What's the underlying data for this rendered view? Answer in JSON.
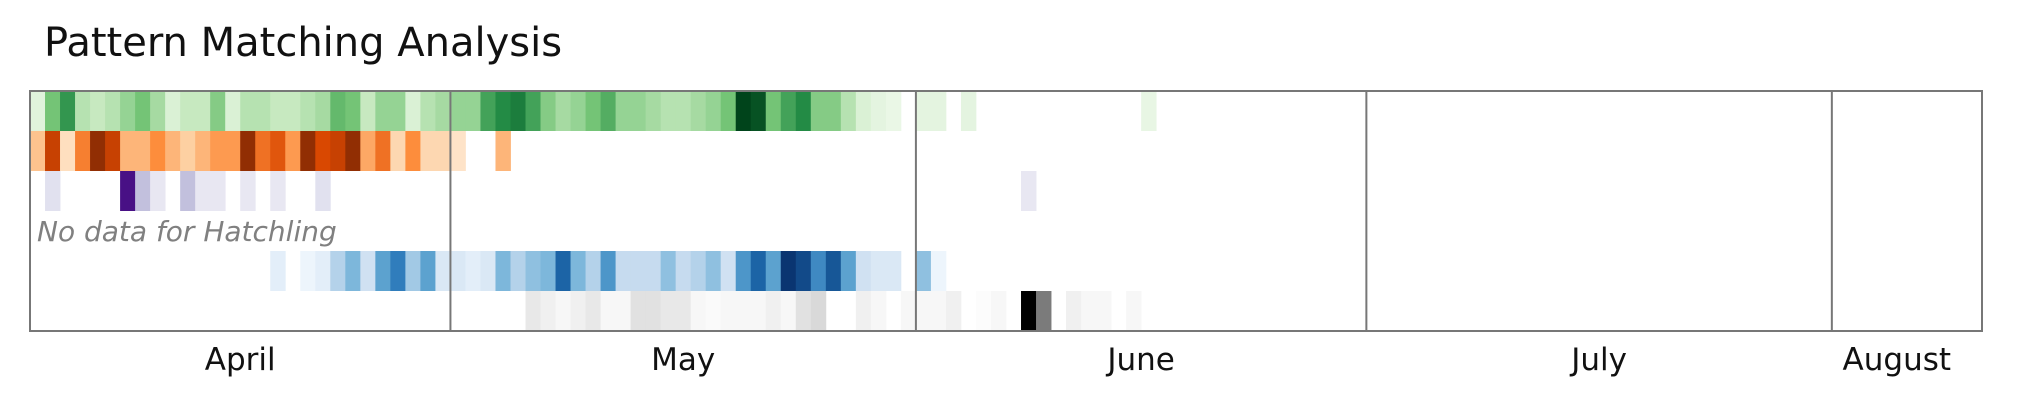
{
  "chart_data": {
    "type": "heatmap",
    "title": "Pattern Matching Analysis",
    "x_axis": {
      "type": "date",
      "range": [
        "2024-03-29",
        "2024-08-06"
      ],
      "month_labels": [
        "April",
        "May",
        "June",
        "July",
        "August"
      ],
      "month_boundaries": [
        "2024-04-26",
        "2024-05-27",
        "2024-06-26",
        "2024-07-27"
      ]
    },
    "color_scale": "intensity 0-1 per row",
    "rows": [
      {
        "colormap": "greens",
        "start": "2024-03-29",
        "values": [
          0.12,
          0.5,
          0.7,
          0.3,
          0.25,
          0.3,
          0.4,
          0.5,
          0.35,
          0.15,
          0.25,
          0.25,
          0.45,
          0.15,
          0.3,
          0.3,
          0.25,
          0.25,
          0.3,
          0.35,
          0.55,
          0.5,
          0.25,
          0.4,
          0.4,
          0.15,
          0.3,
          0.35,
          0.4,
          0.4,
          0.65,
          0.75,
          0.8,
          0.65,
          0.45,
          0.35,
          0.4,
          0.5,
          0.6,
          0.4,
          0.4,
          0.35,
          0.3,
          0.3,
          0.35,
          0.4,
          0.5,
          1.0,
          0.95,
          0.5,
          0.65,
          0.75,
          0.45,
          0.45,
          0.3,
          0.15,
          0.1,
          0.07,
          0.0,
          0.1,
          0.1,
          0.0,
          0.1,
          0.0,
          0.0,
          0.0,
          0.0,
          0.0,
          0.0,
          0.0,
          0.0,
          0.0,
          0.0,
          0.0,
          0.08
        ]
      },
      {
        "colormap": "oranges",
        "start": "2024-03-29",
        "values": [
          0.3,
          0.8,
          0.15,
          0.55,
          0.95,
          0.8,
          0.35,
          0.35,
          0.5,
          0.35,
          0.25,
          0.35,
          0.45,
          0.45,
          0.95,
          0.6,
          0.7,
          0.45,
          0.95,
          0.75,
          0.8,
          0.95,
          0.4,
          0.6,
          0.2,
          0.5,
          0.2,
          0.2,
          0.12,
          0.0,
          0.0,
          0.35
        ]
      },
      {
        "colormap": "purples",
        "start": "2024-03-29",
        "values": [
          0.0,
          0.2,
          0.0,
          0.0,
          0.0,
          0.0,
          0.95,
          0.35,
          0.15,
          0.0,
          0.35,
          0.15,
          0.15,
          0.0,
          0.15,
          0.0,
          0.15,
          0.0,
          0.0,
          0.2,
          0.0,
          0.0,
          0.0,
          0.0,
          0.0,
          0.0,
          0.0,
          0.0,
          0.0,
          0.0,
          0.0,
          0.0,
          0.0,
          0.0,
          0.0,
          0.0,
          0.0,
          0.0,
          0.0,
          0.0,
          0.0,
          0.0,
          0.0,
          0.0,
          0.0,
          0.0,
          0.0,
          0.0,
          0.0,
          0.0,
          0.0,
          0.0,
          0.0,
          0.0,
          0.0,
          0.0,
          0.0,
          0.0,
          0.0,
          0.0,
          0.0,
          0.0,
          0.0,
          0.0,
          0.0,
          0.0,
          0.15
        ]
      },
      {
        "colormap": "none",
        "label": "No data for Hatchling",
        "values": []
      },
      {
        "colormap": "blues",
        "start": "2024-04-14",
        "values": [
          0.1,
          0.0,
          0.05,
          0.1,
          0.3,
          0.45,
          0.2,
          0.55,
          0.7,
          0.35,
          0.55,
          0.15,
          0.15,
          0.1,
          0.15,
          0.45,
          0.3,
          0.4,
          0.45,
          0.8,
          0.45,
          0.3,
          0.6,
          0.25,
          0.25,
          0.25,
          0.4,
          0.25,
          0.3,
          0.4,
          0.2,
          0.6,
          0.8,
          0.55,
          0.98,
          0.9,
          0.65,
          0.85,
          0.55,
          0.2,
          0.15,
          0.15,
          0.0,
          0.4,
          0.05
        ]
      },
      {
        "colormap": "greys",
        "start": "2024-05-01",
        "values": [
          0.15,
          0.1,
          0.05,
          0.1,
          0.15,
          0.05,
          0.05,
          0.2,
          0.2,
          0.15,
          0.15,
          0.05,
          0.03,
          0.05,
          0.05,
          0.05,
          0.1,
          0.05,
          0.2,
          0.25,
          0.0,
          0.0,
          0.1,
          0.05,
          0.0,
          0.05,
          0.05,
          0.05,
          0.1,
          0.0,
          0.02,
          0.05,
          0.0,
          1.0,
          0.6,
          0.0,
          0.1,
          0.05,
          0.05,
          0.0,
          0.05
        ]
      }
    ]
  }
}
